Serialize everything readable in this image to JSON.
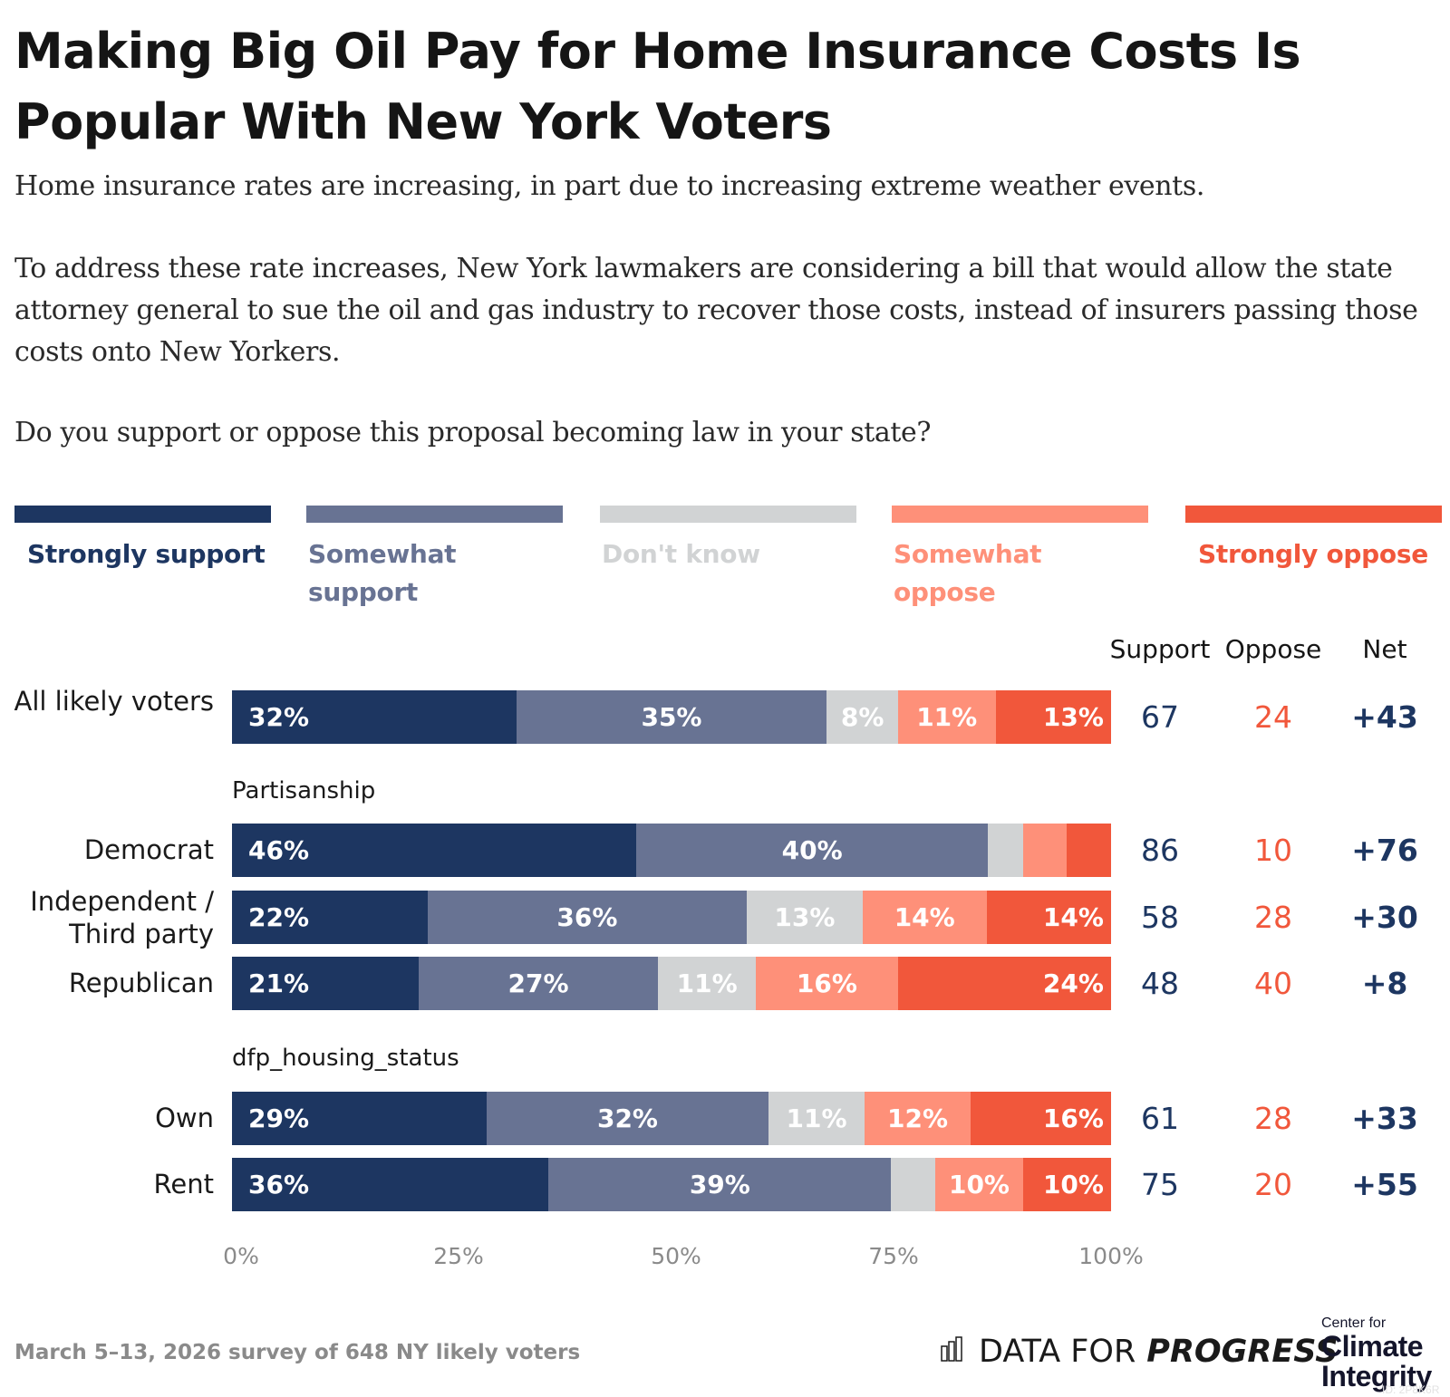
{
  "header": {
    "title": "Making Big Oil Pay for Home Insurance Costs Is Popular With New York Voters",
    "paragraph_1": "Home insurance rates are increasing, in part due to increasing extreme weather events.",
    "paragraph_2": "To address these rate increases, New York lawmakers are considering a bill that would allow the state attorney general to sue the oil and gas industry to recover those costs, instead of insurers passing those costs onto New Yorkers.",
    "question": "Do you support or oppose this proposal becoming law in your state?"
  },
  "colors": {
    "strongly_support": "#1d3661",
    "somewhat_support": "#687393",
    "dont_know": "#d1d3d4",
    "somewhat_oppose": "#fe9079",
    "strongly_oppose": "#f1573b",
    "support_text": "#1d3661",
    "oppose_text": "#f1573b"
  },
  "chart_data": {
    "type": "bar",
    "subtype": "stacked-horizontal-100",
    "legend": [
      {
        "key": "strongly_support",
        "label": "Strongly support"
      },
      {
        "key": "somewhat_support",
        "label": "Somewhat support"
      },
      {
        "key": "dont_know",
        "label": "Don't know"
      },
      {
        "key": "somewhat_oppose",
        "label": "Somewhat oppose"
      },
      {
        "key": "strongly_oppose",
        "label": "Strongly oppose"
      }
    ],
    "legend_position": "top",
    "columns": {
      "support": "Support",
      "oppose": "Oppose",
      "net": "Net"
    },
    "groups": [
      {
        "label": "",
        "rows": [
          {
            "label": "All likely voters",
            "values": [
              32,
              35,
              8,
              11,
              13
            ],
            "labels": [
              "32%",
              "35%",
              "8%",
              "11%",
              "13%"
            ],
            "support": "67",
            "oppose": "24",
            "net": "+43"
          }
        ]
      },
      {
        "label": "Partisanship",
        "rows": [
          {
            "label": "Democrat",
            "values": [
              46,
              40,
              4,
              5,
              5
            ],
            "labels": [
              "46%",
              "40%",
              "",
              "",
              ""
            ],
            "support": "86",
            "oppose": "10",
            "net": "+76"
          },
          {
            "label": "Independent / Third party",
            "values": [
              22,
              36,
              13,
              14,
              14
            ],
            "labels": [
              "22%",
              "36%",
              "13%",
              "14%",
              "14%"
            ],
            "support": "58",
            "oppose": "28",
            "net": "+30"
          },
          {
            "label": "Republican",
            "values": [
              21,
              27,
              11,
              16,
              24
            ],
            "labels": [
              "21%",
              "27%",
              "11%",
              "16%",
              "24%"
            ],
            "support": "48",
            "oppose": "40",
            "net": "+8"
          }
        ]
      },
      {
        "label": "dfp_housing_status",
        "rows": [
          {
            "label": "Own",
            "values": [
              29,
              32,
              11,
              12,
              16
            ],
            "labels": [
              "29%",
              "32%",
              "11%",
              "12%",
              "16%"
            ],
            "support": "61",
            "oppose": "28",
            "net": "+33"
          },
          {
            "label": "Rent",
            "values": [
              36,
              39,
              5,
              10,
              10
            ],
            "labels": [
              "36%",
              "39%",
              "",
              "10%",
              "10%"
            ],
            "support": "75",
            "oppose": "20",
            "net": "+55"
          }
        ]
      }
    ],
    "x_ticks": [
      "0%",
      "25%",
      "50%",
      "75%",
      "100%"
    ],
    "xlim": [
      0,
      100
    ],
    "grid": false
  },
  "footer": {
    "note": "March 5–13, 2026 survey of 648 NY likely voters",
    "dfp_light": "DATA FOR",
    "dfp_bold": "PROGRESS",
    "cci_small": "Center for",
    "cci_line1": "Climate",
    "cci_line2": "Integrity",
    "watermark": "ID: 2P8K6R"
  }
}
